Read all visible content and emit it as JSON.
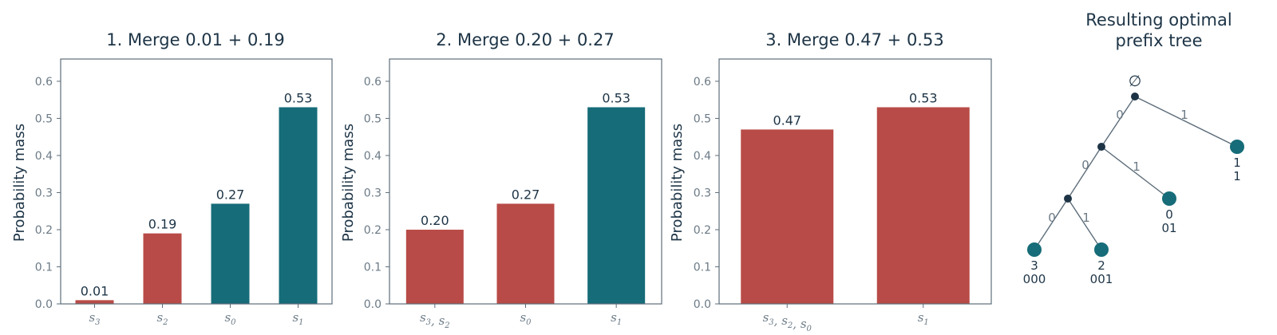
{
  "colors": {
    "merged": "#b84b47",
    "unmerged": "#166c78",
    "internal_node": "#1d3446",
    "edge": "#5d6d7a"
  },
  "chart_data": [
    {
      "type": "bar",
      "title": "1. Merge 0.01 + 0.19",
      "ylabel": "Probability mass",
      "ylim": [
        0,
        0.66
      ],
      "yticks": [
        "0.0",
        "0.1",
        "0.2",
        "0.3",
        "0.4",
        "0.5",
        "0.6"
      ],
      "categories": [
        "s3",
        "s2",
        "s0",
        "s1"
      ],
      "values": [
        0.01,
        0.19,
        0.27,
        0.53
      ],
      "value_labels": [
        "0.01",
        "0.19",
        "0.27",
        "0.53"
      ],
      "highlight": [
        true,
        true,
        false,
        false
      ],
      "grid": false
    },
    {
      "type": "bar",
      "title": "2. Merge 0.20 + 0.27",
      "ylabel": "Probability mass",
      "ylim": [
        0,
        0.66
      ],
      "yticks": [
        "0.0",
        "0.1",
        "0.2",
        "0.3",
        "0.4",
        "0.5",
        "0.6"
      ],
      "categories": [
        "s3, s2",
        "s0",
        "s1"
      ],
      "values": [
        0.2,
        0.27,
        0.53
      ],
      "value_labels": [
        "0.20",
        "0.27",
        "0.53"
      ],
      "highlight": [
        true,
        true,
        false
      ],
      "grid": false
    },
    {
      "type": "bar",
      "title": "3. Merge 0.47 + 0.53",
      "ylabel": "Probability mass",
      "ylim": [
        0,
        0.66
      ],
      "yticks": [
        "0.0",
        "0.1",
        "0.2",
        "0.3",
        "0.4",
        "0.5",
        "0.6"
      ],
      "categories": [
        "s3, s2, s0",
        "s1"
      ],
      "values": [
        0.47,
        0.53
      ],
      "value_labels": [
        "0.47",
        "0.53"
      ],
      "highlight": [
        true,
        true
      ],
      "grid": false
    }
  ],
  "tree": {
    "title_line1": "Resulting optimal",
    "title_line2": "prefix tree",
    "root_symbol": "∅",
    "edge_labels": [
      "0",
      "1",
      "0",
      "1",
      "0",
      "1"
    ],
    "leaves": [
      {
        "symbol": "3",
        "code": "000"
      },
      {
        "symbol": "2",
        "code": "001"
      },
      {
        "symbol": "0",
        "code": "01"
      },
      {
        "symbol": "1",
        "code": "1"
      }
    ]
  }
}
